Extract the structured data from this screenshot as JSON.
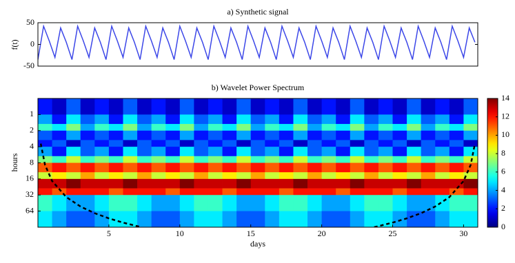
{
  "chart_data": [
    {
      "type": "line",
      "title": "a) Synthetic signal",
      "y_label": "f(t)",
      "color": "#3b46e8",
      "xlim": [
        0,
        31
      ],
      "ylim": [
        -50,
        50
      ],
      "yticks": [
        -50,
        0,
        50
      ],
      "x": [
        0,
        0.4,
        0.8,
        1.2,
        1.6,
        2,
        2.4,
        2.8,
        3.2,
        3.6,
        4,
        4.4,
        4.8,
        5.2,
        5.6,
        6,
        6.4,
        6.8,
        7.2,
        7.6,
        8,
        8.4,
        8.8,
        9.2,
        9.6,
        10,
        10.4,
        10.8,
        11.2,
        11.6,
        12,
        12.4,
        12.8,
        13.2,
        13.6,
        14,
        14.4,
        14.8,
        15.2,
        15.6,
        16,
        16.4,
        16.8,
        17.2,
        17.6,
        18,
        18.4,
        18.8,
        19.2,
        19.6,
        20,
        20.4,
        20.8,
        21.2,
        21.6,
        22,
        22.4,
        22.8,
        23.2,
        23.6,
        24,
        24.4,
        24.8,
        25.2,
        25.6,
        26,
        26.4,
        26.8,
        27.2,
        27.6,
        28,
        28.4,
        28.8,
        29.2,
        29.6,
        30,
        30.4,
        30.8
      ],
      "values": [
        -35,
        42,
        8,
        -30,
        38,
        5,
        -35,
        42,
        8,
        -30,
        38,
        5,
        -35,
        42,
        8,
        -30,
        38,
        5,
        -35,
        42,
        8,
        -30,
        38,
        5,
        -35,
        42,
        8,
        -30,
        38,
        5,
        -35,
        42,
        8,
        -30,
        38,
        5,
        -35,
        42,
        8,
        -30,
        38,
        5,
        -35,
        42,
        8,
        -30,
        38,
        5,
        -35,
        42,
        8,
        -30,
        38,
        5,
        -35,
        42,
        8,
        -30,
        38,
        5,
        -35,
        42,
        8,
        -30,
        38,
        5,
        -35,
        42,
        8,
        -30,
        38,
        5,
        -35,
        42,
        8,
        -30,
        38,
        5
      ]
    },
    {
      "type": "heatmap",
      "title": "b) Wavelet Power Spectrum",
      "x_label": "days",
      "y_label": "hours",
      "xlim": [
        0,
        31
      ],
      "xticks": [
        5,
        10,
        15,
        20,
        25,
        30
      ],
      "ylim": [
        0.5,
        128
      ],
      "yticks": [
        1,
        2,
        4,
        8,
        16,
        32,
        64
      ],
      "y_log_base": 2,
      "y_inverted": true,
      "clim": [
        0,
        14
      ],
      "cticks": [
        0,
        2,
        4,
        6,
        8,
        10,
        12,
        14
      ],
      "colormap": "jet",
      "x_bins": [
        0,
        1,
        2,
        3,
        4,
        5,
        6,
        7,
        8,
        9,
        10,
        11,
        12,
        13,
        14,
        15,
        16,
        17,
        18,
        19,
        20,
        21,
        22,
        23,
        24,
        25,
        26,
        27,
        28,
        29,
        30,
        31
      ],
      "y_bins": [
        0.5,
        1,
        1.5,
        2,
        3,
        4,
        6,
        8,
        12,
        16,
        24,
        32,
        64,
        128
      ],
      "z": [
        [
          2,
          1,
          3,
          1,
          2,
          1,
          3,
          1,
          2,
          1,
          3,
          1,
          2,
          1,
          3,
          1,
          2,
          1,
          3,
          1,
          2,
          1,
          3,
          1,
          2,
          1,
          3,
          1,
          2,
          1,
          3
        ],
        [
          4,
          2,
          5,
          3,
          4,
          2,
          5,
          3,
          4,
          2,
          5,
          3,
          4,
          2,
          5,
          3,
          4,
          2,
          5,
          3,
          4,
          2,
          5,
          3,
          4,
          2,
          5,
          3,
          4,
          2,
          5
        ],
        [
          6,
          5,
          7,
          4,
          6,
          5,
          7,
          4,
          6,
          5,
          7,
          4,
          6,
          5,
          7,
          4,
          6,
          5,
          7,
          4,
          6,
          5,
          7,
          4,
          6,
          5,
          7,
          4,
          6,
          5,
          7
        ],
        [
          3,
          2,
          4,
          2,
          3,
          2,
          4,
          2,
          3,
          2,
          4,
          2,
          3,
          2,
          4,
          2,
          3,
          2,
          4,
          2,
          3,
          2,
          4,
          2,
          3,
          2,
          4,
          2,
          3,
          2,
          4
        ],
        [
          2,
          3,
          1,
          3,
          2,
          3,
          1,
          3,
          2,
          3,
          1,
          3,
          2,
          3,
          1,
          3,
          2,
          3,
          1,
          3,
          2,
          3,
          1,
          3,
          2,
          3,
          1,
          3,
          2,
          3,
          1
        ],
        [
          4,
          2,
          5,
          3,
          4,
          2,
          5,
          3,
          4,
          2,
          5,
          3,
          4,
          2,
          5,
          3,
          4,
          2,
          5,
          3,
          4,
          2,
          5,
          3,
          4,
          2,
          5,
          3,
          4,
          2,
          5
        ],
        [
          7,
          6,
          8,
          6,
          7,
          6,
          8,
          6,
          7,
          6,
          8,
          6,
          7,
          6,
          8,
          6,
          7,
          6,
          8,
          6,
          7,
          6,
          8,
          6,
          7,
          6,
          8,
          6,
          7,
          6,
          8
        ],
        [
          11,
          12,
          11,
          12,
          11,
          12,
          11,
          12,
          11,
          12,
          11,
          12,
          11,
          12,
          11,
          12,
          11,
          12,
          11,
          12,
          11,
          12,
          11,
          12,
          11,
          12,
          11,
          12,
          11,
          12,
          11
        ],
        [
          8,
          9,
          8,
          10,
          8,
          9,
          8,
          10,
          8,
          9,
          8,
          10,
          8,
          9,
          8,
          10,
          8,
          9,
          8,
          10,
          8,
          9,
          8,
          10,
          8,
          9,
          8,
          10,
          8,
          9,
          8
        ],
        [
          13,
          13,
          14,
          13,
          13,
          13,
          14,
          13,
          13,
          13,
          14,
          13,
          13,
          13,
          14,
          13,
          13,
          13,
          14,
          13,
          13,
          13,
          14,
          13,
          13,
          13,
          14,
          13,
          13,
          13,
          14
        ],
        [
          12,
          11,
          12,
          12,
          12,
          11,
          12,
          12,
          12,
          11,
          12,
          12,
          12,
          11,
          12,
          12,
          12,
          11,
          12,
          12,
          12,
          11,
          12,
          12,
          12,
          11,
          12,
          12,
          12,
          11,
          12
        ],
        [
          6,
          5,
          4,
          4,
          5,
          6,
          6,
          5,
          4,
          4,
          5,
          6,
          6,
          5,
          4,
          4,
          5,
          6,
          6,
          5,
          4,
          4,
          5,
          6,
          6,
          5,
          4,
          4,
          5,
          6,
          6
        ],
        [
          5,
          4,
          3,
          3,
          4,
          5,
          5,
          4,
          3,
          3,
          4,
          5,
          5,
          4,
          3,
          3,
          4,
          5,
          5,
          4,
          3,
          3,
          4,
          5,
          5,
          4,
          3,
          3,
          4,
          5,
          5
        ]
      ],
      "coi": {
        "color": "#000000",
        "x": [
          0.2,
          0.5,
          1,
          2,
          3,
          4,
          5,
          6,
          7.3,
          15.5,
          23.7,
          25,
          26,
          27,
          28,
          29,
          30,
          30.5,
          30.8
        ],
        "values": [
          3.5,
          8.75,
          17.5,
          35,
          52.5,
          70,
          87.5,
          105,
          128,
          null,
          128,
          105,
          87.5,
          70,
          52.5,
          35,
          17.5,
          8.75,
          3.5
        ]
      }
    }
  ]
}
